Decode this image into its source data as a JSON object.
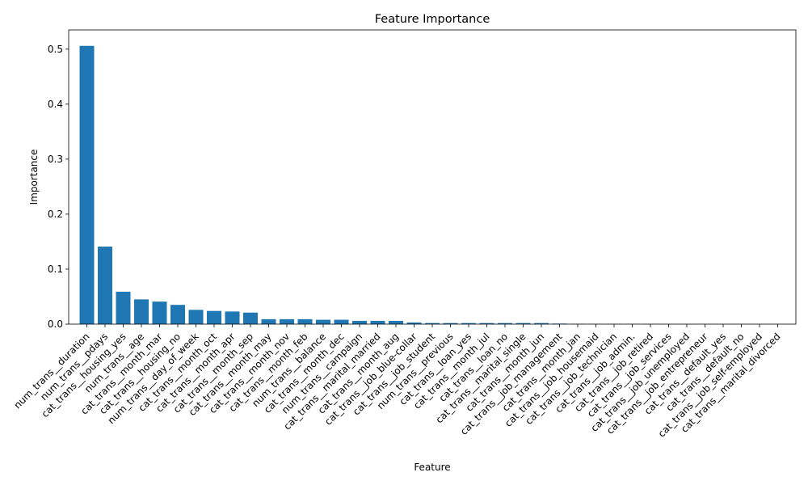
{
  "chart_data": {
    "type": "bar",
    "title": "Feature Importance",
    "xlabel": "Feature",
    "ylabel": "Importance",
    "ylim": [
      0,
      0.535
    ],
    "yticks": [
      "0.0",
      "0.1",
      "0.2",
      "0.3",
      "0.4",
      "0.5"
    ],
    "grid": false,
    "bar_color": "#1f77b4",
    "categories": [
      "num_trans__duration",
      "num_trans__pdays",
      "cat_trans__housing_yes",
      "num_trans__age",
      "cat_trans__month_mar",
      "cat_trans__housing_no",
      "num_trans__day_of_week",
      "cat_trans__month_oct",
      "cat_trans__month_apr",
      "cat_trans__month_sep",
      "cat_trans__month_may",
      "cat_trans__month_nov",
      "cat_trans__month_feb",
      "num_trans__balance",
      "cat_trans__month_dec",
      "num_trans__campaign",
      "cat_trans__marital_married",
      "cat_trans__month_aug",
      "cat_trans__job_blue-collar",
      "cat_trans__job_student",
      "num_trans__previous",
      "cat_trans__loan_yes",
      "cat_trans__month_jul",
      "cat_trans__loan_no",
      "cat_trans__marital_single",
      "cat_trans__month_jun",
      "cat_trans__job_management",
      "cat_trans__month_jan",
      "cat_trans__job_housemaid",
      "cat_trans__job_technician",
      "cat_trans__job_admin.",
      "cat_trans__job_retired",
      "cat_trans__job_services",
      "cat_trans__job_unemployed",
      "cat_trans__job_entrepreneur",
      "cat_trans__default_yes",
      "cat_trans__default_no",
      "cat_trans__job_self-employed",
      "cat_trans__marital_divorced"
    ],
    "values": [
      0.506,
      0.141,
      0.059,
      0.045,
      0.041,
      0.035,
      0.026,
      0.024,
      0.023,
      0.021,
      0.009,
      0.009,
      0.009,
      0.008,
      0.008,
      0.006,
      0.006,
      0.006,
      0.003,
      0.002,
      0.002,
      0.002,
      0.002,
      0.002,
      0.002,
      0.002,
      0.001,
      0.0005,
      0.0004,
      0.0004,
      0.0003,
      0.0003,
      0.0002,
      0.0002,
      0.0002,
      0.0001,
      0.0001,
      0.0001,
      0.0001
    ]
  }
}
